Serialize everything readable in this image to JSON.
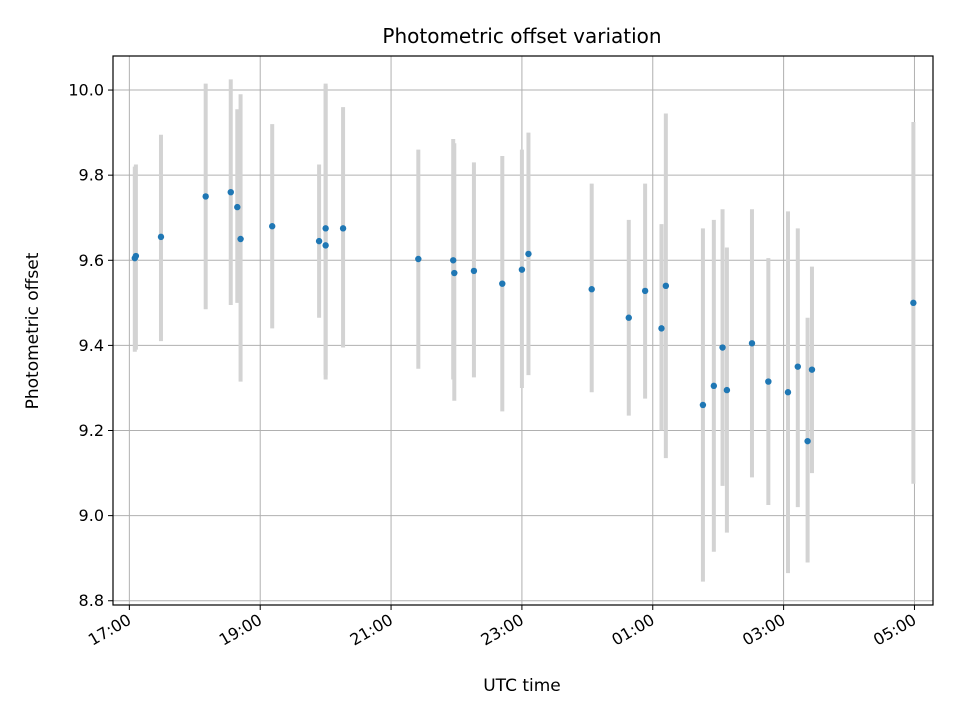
{
  "chart_data": {
    "type": "scatter",
    "title": "Photometric offset variation",
    "xlabel": "UTC time",
    "ylabel": "Photometric offset",
    "x_axis_type": "time",
    "xlim": [
      "16:45",
      "05:17"
    ],
    "ylim": [
      8.79,
      10.08
    ],
    "x_ticks": [
      "17:00",
      "19:00",
      "21:00",
      "23:00",
      "01:00",
      "03:00",
      "05:00"
    ],
    "y_ticks": [
      8.8,
      9.0,
      9.2,
      9.4,
      9.6,
      9.8,
      10.0
    ],
    "y_tick_labels": [
      "8.8",
      "9.0",
      "9.2",
      "9.4",
      "9.6",
      "9.8",
      "10.0"
    ],
    "grid": true,
    "colors": {
      "point": "#1f77b4",
      "errorbar": "#d3d3d3",
      "grid": "#b0b0b0",
      "axes": "#000000"
    },
    "series": [
      {
        "points": [
          {
            "x": "17:05",
            "y": 9.605,
            "ylow": 9.385,
            "yhigh": 9.82
          },
          {
            "x": "17:06",
            "y": 9.61,
            "ylow": 9.39,
            "yhigh": 9.825
          },
          {
            "x": "17:29",
            "y": 9.655,
            "ylow": 9.41,
            "yhigh": 9.895
          },
          {
            "x": "18:10",
            "y": 9.75,
            "ylow": 9.485,
            "yhigh": 10.015
          },
          {
            "x": "18:33",
            "y": 9.76,
            "ylow": 9.495,
            "yhigh": 10.025
          },
          {
            "x": "18:39",
            "y": 9.725,
            "ylow": 9.5,
            "yhigh": 9.955
          },
          {
            "x": "18:42",
            "y": 9.65,
            "ylow": 9.315,
            "yhigh": 9.99
          },
          {
            "x": "19:11",
            "y": 9.68,
            "ylow": 9.44,
            "yhigh": 9.92
          },
          {
            "x": "19:54",
            "y": 9.645,
            "ylow": 9.465,
            "yhigh": 9.825
          },
          {
            "x": "20:00",
            "y": 9.635,
            "ylow": 9.32,
            "yhigh": 10.015
          },
          {
            "x": "20:00",
            "y": 9.675,
            "ylow": 9.33,
            "yhigh": 10.01
          },
          {
            "x": "20:16",
            "y": 9.675,
            "ylow": 9.395,
            "yhigh": 9.96
          },
          {
            "x": "21:25",
            "y": 9.603,
            "ylow": 9.345,
            "yhigh": 9.86
          },
          {
            "x": "21:57",
            "y": 9.6,
            "ylow": 9.32,
            "yhigh": 9.885
          },
          {
            "x": "21:58",
            "y": 9.57,
            "ylow": 9.27,
            "yhigh": 9.875
          },
          {
            "x": "22:16",
            "y": 9.575,
            "ylow": 9.325,
            "yhigh": 9.83
          },
          {
            "x": "22:42",
            "y": 9.545,
            "ylow": 9.245,
            "yhigh": 9.845
          },
          {
            "x": "23:00",
            "y": 9.578,
            "ylow": 9.3,
            "yhigh": 9.86
          },
          {
            "x": "23:06",
            "y": 9.615,
            "ylow": 9.33,
            "yhigh": 9.9
          },
          {
            "x": "00:04",
            "y": 9.532,
            "ylow": 9.29,
            "yhigh": 9.78
          },
          {
            "x": "00:38",
            "y": 9.465,
            "ylow": 9.235,
            "yhigh": 9.695
          },
          {
            "x": "00:53",
            "y": 9.528,
            "ylow": 9.275,
            "yhigh": 9.78
          },
          {
            "x": "01:08",
            "y": 9.44,
            "ylow": 9.2,
            "yhigh": 9.685
          },
          {
            "x": "01:12",
            "y": 9.54,
            "ylow": 9.135,
            "yhigh": 9.945
          },
          {
            "x": "01:46",
            "y": 9.26,
            "ylow": 8.845,
            "yhigh": 9.675
          },
          {
            "x": "01:56",
            "y": 9.305,
            "ylow": 8.915,
            "yhigh": 9.695
          },
          {
            "x": "02:04",
            "y": 9.395,
            "ylow": 9.07,
            "yhigh": 9.72
          },
          {
            "x": "02:08",
            "y": 9.295,
            "ylow": 8.96,
            "yhigh": 9.63
          },
          {
            "x": "02:31",
            "y": 9.405,
            "ylow": 9.09,
            "yhigh": 9.72
          },
          {
            "x": "02:46",
            "y": 9.315,
            "ylow": 9.025,
            "yhigh": 9.605
          },
          {
            "x": "03:04",
            "y": 9.29,
            "ylow": 8.865,
            "yhigh": 9.715
          },
          {
            "x": "03:13",
            "y": 9.35,
            "ylow": 9.02,
            "yhigh": 9.675
          },
          {
            "x": "03:22",
            "y": 9.175,
            "ylow": 8.89,
            "yhigh": 9.465
          },
          {
            "x": "03:26",
            "y": 9.343,
            "ylow": 9.1,
            "yhigh": 9.585
          },
          {
            "x": "04:59",
            "y": 9.5,
            "ylow": 9.075,
            "yhigh": 9.925
          }
        ]
      }
    ]
  }
}
